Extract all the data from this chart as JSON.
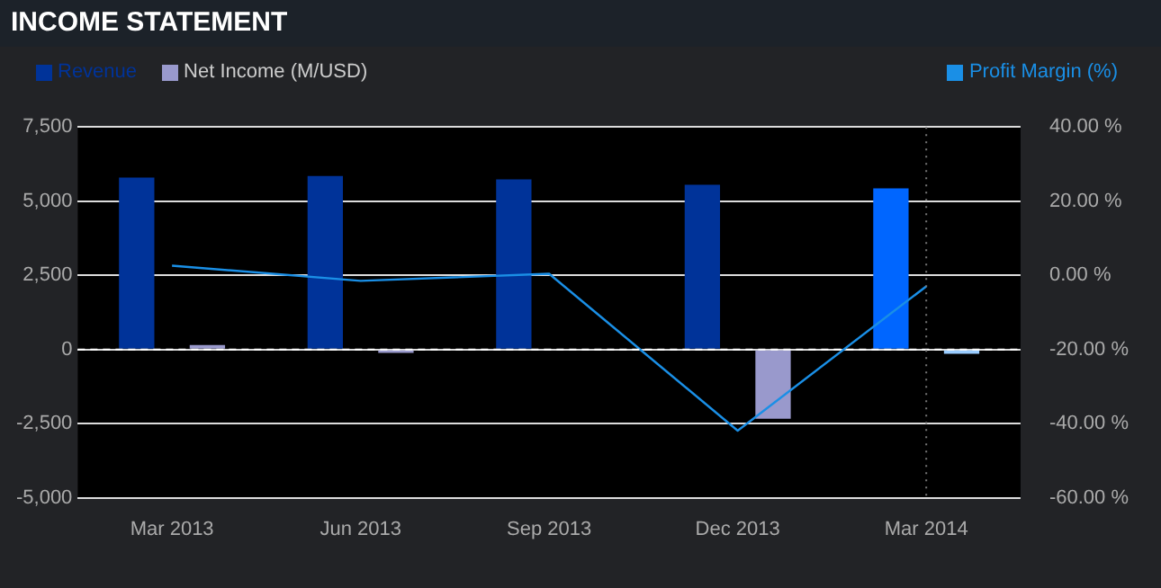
{
  "chart_data": {
    "type": "bar",
    "title": "INCOME STATEMENT",
    "categories": [
      "Mar 2013",
      "Jun 2013",
      "Sep 2013",
      "Dec 2013",
      "Mar 2014"
    ],
    "series": [
      {
        "name": "Revenue",
        "color": "#003399",
        "colors": [
          "#003399",
          "#003399",
          "#003399",
          "#003399",
          "#0066ff"
        ],
        "values": [
          5790,
          5850,
          5730,
          5550,
          5430
        ]
      },
      {
        "name": "Net Income (M/USD)",
        "color": "#9999cc",
        "colors": [
          "#9999cc",
          "#9999cc",
          "#9999cc",
          "#9999cc",
          "#99ccff"
        ],
        "values": [
          150,
          -120,
          null,
          -2340,
          -150
        ]
      },
      {
        "name": "Profit Margin (%)",
        "type": "line",
        "axis": "y2",
        "color": "#1a8fe6",
        "values": [
          2.6,
          -1.5,
          0.4,
          -41.9,
          -3.0
        ]
      }
    ],
    "ylim": [
      -5000,
      7500
    ],
    "yticks": [
      {
        "value": -5000,
        "label": "-5,000"
      },
      {
        "value": -2500,
        "label": "-2,500"
      },
      0,
      {
        "value": 2500,
        "label": "2,500"
      },
      {
        "value": 5000,
        "label": "5,000"
      },
      {
        "value": 7500,
        "label": "7,500"
      }
    ],
    "y2lim": [
      -60,
      40
    ],
    "y2ticks": [
      {
        "value": -60,
        "label": "-60.00 %"
      },
      {
        "value": -40,
        "label": "-40.00 %"
      },
      {
        "value": -20,
        "label": "-20.00 %"
      },
      {
        "value": 0,
        "label": "0.00 %"
      },
      {
        "value": 20,
        "label": "20.00 %"
      },
      {
        "value": 40,
        "label": "40.00 %"
      }
    ],
    "ref_lines": [
      {
        "axis": "y",
        "value": 0,
        "color": "#ffffff",
        "line_style": "dashed"
      },
      {
        "axis": "x",
        "value": "Mar 2014",
        "color": "#777777",
        "line_style": "dotted"
      }
    ],
    "grid": "y",
    "legend": "top",
    "marker": "none",
    "line_style": "solid"
  }
}
